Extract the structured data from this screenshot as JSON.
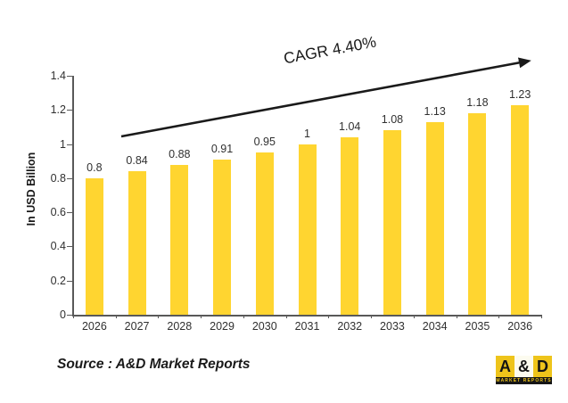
{
  "chart_data": {
    "type": "bar",
    "categories": [
      "2026",
      "2027",
      "2028",
      "2029",
      "2030",
      "2031",
      "2032",
      "2033",
      "2034",
      "2035",
      "2036"
    ],
    "values": [
      0.8,
      0.84,
      0.88,
      0.91,
      0.95,
      1,
      1.04,
      1.08,
      1.13,
      1.18,
      1.23
    ],
    "labels": [
      "0.8",
      "0.84",
      "0.88",
      "0.91",
      "0.95",
      "1",
      "1.04",
      "1.08",
      "1.13",
      "1.18",
      "1.23"
    ],
    "title": "",
    "xlabel": "",
    "ylabel": "In USD Billion",
    "ylim": [
      0,
      1.4
    ],
    "yticks": [
      0,
      0.2,
      0.4,
      0.6,
      0.8,
      1,
      1.2,
      1.4
    ],
    "ytick_labels": [
      "0",
      "0.2",
      "0.4",
      "0.6",
      "0.8",
      "1",
      "1.2",
      "1.4"
    ],
    "grid": false,
    "legend": false,
    "annotation": "CAGR 4.40%",
    "bar_color": "#FFD530",
    "axis_color": "#595959",
    "label_color": "#303030"
  },
  "source": {
    "text": "Source : A&D Market Reports"
  },
  "logo": {
    "letter_a": "A",
    "amp": "&",
    "letter_d": "D",
    "tagline": "MARKET REPORTS",
    "yellow": "#EEC41B",
    "black": "#151515"
  }
}
